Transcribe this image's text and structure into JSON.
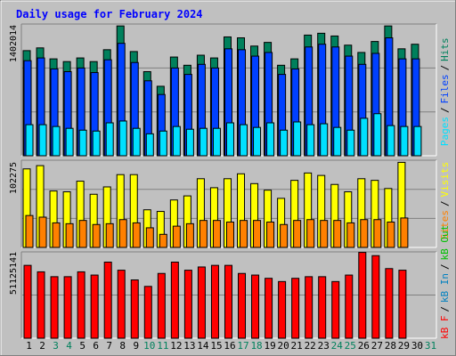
{
  "title": "Daily usage for February 2024",
  "colors": {
    "background": "#c0c0c0",
    "plot_bg": "#c0c0c0",
    "title": "#0000ff",
    "hits": "#00805c",
    "files": "#0040ff",
    "pages": "#00e0ff",
    "visits": "#ffff00",
    "sites": "#ff8000",
    "kbf": "#ff0000",
    "kbin": "#0080c0",
    "kbout": "#00c000",
    "weekend_label": "#00805c",
    "weekday_label": "#000000"
  },
  "chart_data": [
    {
      "type": "bar",
      "panel": "hits-files-pages",
      "ymax_label": "1402014",
      "x": [
        "1",
        "2",
        "3",
        "4",
        "5",
        "6",
        "7",
        "8",
        "9",
        "10",
        "11",
        "12",
        "13",
        "14",
        "15",
        "16",
        "17",
        "18",
        "19",
        "20",
        "21",
        "22",
        "23",
        "24",
        "25",
        "26",
        "27",
        "28",
        "29",
        "30",
        "31"
      ],
      "weekend": [
        "3",
        "4",
        "10",
        "11",
        "17",
        "18",
        "24",
        "25",
        "31"
      ],
      "ylim": [
        0,
        1402014
      ],
      "series": [
        {
          "name": "Hits",
          "color": "#00805c",
          "values": [
            1150000,
            1180000,
            1060000,
            1030000,
            1070000,
            1030000,
            1160000,
            1420000,
            1140000,
            920000,
            760000,
            1080000,
            990000,
            1100000,
            1070000,
            1300000,
            1290000,
            1200000,
            1240000,
            990000,
            1060000,
            1320000,
            1340000,
            1310000,
            1210000,
            1130000,
            1250000,
            1420000,
            1170000,
            1220000,
            null
          ],
          "series_label_color": "#00805c"
        },
        {
          "name": "Files",
          "color": "#0040ff",
          "values": [
            1040000,
            1070000,
            950000,
            920000,
            960000,
            910000,
            1050000,
            1230000,
            1020000,
            820000,
            670000,
            960000,
            890000,
            1000000,
            960000,
            1170000,
            1160000,
            1090000,
            1130000,
            890000,
            950000,
            1190000,
            1220000,
            1190000,
            1090000,
            1000000,
            1120000,
            1290000,
            1060000,
            1060000,
            null
          ]
        },
        {
          "name": "Pages",
          "color": "#00e0ff",
          "values": [
            340000,
            340000,
            320000,
            300000,
            280000,
            270000,
            360000,
            380000,
            300000,
            240000,
            270000,
            320000,
            290000,
            300000,
            300000,
            360000,
            340000,
            310000,
            360000,
            280000,
            370000,
            340000,
            350000,
            310000,
            280000,
            410000,
            460000,
            330000,
            320000,
            320000,
            null
          ]
        }
      ],
      "axis_labels": [
        "Pages",
        "/",
        "Files",
        "/",
        "Hits"
      ]
    },
    {
      "type": "bar",
      "panel": "visits-sites",
      "ymax_label": "102275",
      "x": [
        "1",
        "2",
        "3",
        "4",
        "5",
        "6",
        "7",
        "8",
        "9",
        "10",
        "11",
        "12",
        "13",
        "14",
        "15",
        "16",
        "17",
        "18",
        "19",
        "20",
        "21",
        "22",
        "23",
        "24",
        "25",
        "26",
        "27",
        "28",
        "29",
        "30",
        "31"
      ],
      "ylim": [
        0,
        102275
      ],
      "series": [
        {
          "name": "Visits",
          "color": "#ffff00",
          "values": [
            96000,
            100000,
            69000,
            68000,
            81000,
            65000,
            74000,
            89000,
            89000,
            46000,
            44000,
            58000,
            63000,
            84000,
            73000,
            84000,
            90000,
            78000,
            70000,
            60000,
            82000,
            91000,
            88000,
            77000,
            68000,
            84000,
            82000,
            72000,
            104000,
            null,
            null
          ]
        },
        {
          "name": "Sites",
          "color": "#ff8000",
          "values": [
            39000,
            37000,
            30000,
            29000,
            33000,
            28000,
            29000,
            34000,
            30000,
            24000,
            16000,
            26000,
            29000,
            33000,
            33000,
            31000,
            33000,
            33000,
            31000,
            28000,
            33000,
            34000,
            33000,
            33000,
            30000,
            34000,
            34000,
            31000,
            36000,
            null,
            null
          ]
        }
      ],
      "axis_labels": [
        "Sites",
        "/",
        "Visits"
      ]
    },
    {
      "type": "bar",
      "panel": "kbytes",
      "ymax_label": "51125141",
      "x": [
        "1",
        "2",
        "3",
        "4",
        "5",
        "6",
        "7",
        "8",
        "9",
        "10",
        "11",
        "12",
        "13",
        "14",
        "15",
        "16",
        "17",
        "18",
        "19",
        "20",
        "21",
        "22",
        "23",
        "24",
        "25",
        "26",
        "27",
        "28",
        "29",
        "30",
        "31"
      ],
      "ylim": [
        0,
        51125141
      ],
      "series": [
        {
          "name": "kB F",
          "color": "#ff0000",
          "values": [
            45000000,
            41000000,
            38000000,
            38000000,
            41000000,
            39000000,
            47000000,
            42000000,
            36000000,
            32000000,
            40000000,
            47000000,
            42000000,
            44000000,
            45000000,
            45000000,
            40000000,
            39000000,
            37000000,
            35000000,
            37000000,
            38000000,
            38000000,
            35000000,
            39000000,
            53000000,
            51000000,
            43000000,
            42000000,
            null,
            null
          ]
        }
      ],
      "axis_labels": [
        "kB F",
        "/",
        "kB In",
        "/",
        "kB Out"
      ]
    }
  ],
  "days": [
    "1",
    "2",
    "3",
    "4",
    "5",
    "6",
    "7",
    "8",
    "9",
    "10",
    "11",
    "12",
    "13",
    "14",
    "15",
    "16",
    "17",
    "18",
    "19",
    "20",
    "21",
    "22",
    "23",
    "24",
    "25",
    "26",
    "27",
    "28",
    "29",
    "30",
    "31"
  ]
}
